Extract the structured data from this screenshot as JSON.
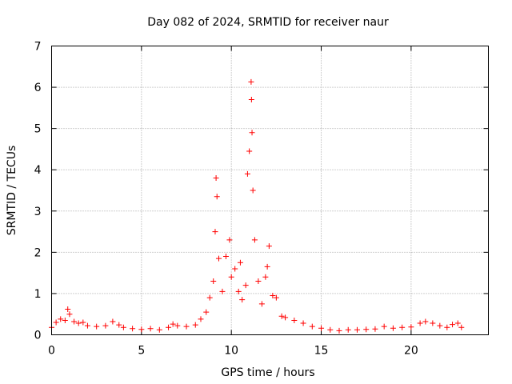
{
  "chart_data": {
    "type": "scatter",
    "title": "Day 082 of 2024, SRMTID for receiver naur",
    "xlabel": "GPS time / hours",
    "ylabel": "SRMTID / TECUs",
    "xlim": [
      0,
      24.3
    ],
    "ylim": [
      0,
      7
    ],
    "x_ticks": [
      0,
      5,
      10,
      15,
      20
    ],
    "y_ticks": [
      0,
      1,
      2,
      3,
      4,
      5,
      6,
      7
    ],
    "grid": true,
    "marker": "+",
    "color": "#ff0000",
    "series": [
      {
        "name": "SRMTID",
        "points": [
          [
            0.0,
            0.18
          ],
          [
            0.25,
            0.3
          ],
          [
            0.5,
            0.38
          ],
          [
            0.75,
            0.35
          ],
          [
            0.9,
            0.62
          ],
          [
            1.0,
            0.5
          ],
          [
            1.25,
            0.32
          ],
          [
            1.5,
            0.28
          ],
          [
            1.75,
            0.3
          ],
          [
            2.0,
            0.22
          ],
          [
            2.5,
            0.2
          ],
          [
            3.0,
            0.22
          ],
          [
            3.4,
            0.32
          ],
          [
            3.75,
            0.24
          ],
          [
            4.0,
            0.18
          ],
          [
            4.5,
            0.15
          ],
          [
            5.0,
            0.13
          ],
          [
            5.5,
            0.15
          ],
          [
            6.0,
            0.12
          ],
          [
            6.5,
            0.18
          ],
          [
            6.75,
            0.26
          ],
          [
            7.0,
            0.22
          ],
          [
            7.5,
            0.2
          ],
          [
            8.0,
            0.24
          ],
          [
            8.3,
            0.38
          ],
          [
            8.6,
            0.55
          ],
          [
            8.8,
            0.9
          ],
          [
            9.0,
            1.3
          ],
          [
            9.1,
            2.5
          ],
          [
            9.15,
            3.8
          ],
          [
            9.2,
            3.35
          ],
          [
            9.3,
            1.85
          ],
          [
            9.5,
            1.05
          ],
          [
            9.7,
            1.9
          ],
          [
            9.9,
            2.3
          ],
          [
            10.0,
            1.4
          ],
          [
            10.2,
            1.6
          ],
          [
            10.4,
            1.05
          ],
          [
            10.5,
            1.75
          ],
          [
            10.6,
            0.85
          ],
          [
            10.8,
            1.2
          ],
          [
            10.9,
            3.9
          ],
          [
            11.0,
            4.45
          ],
          [
            11.1,
            6.13
          ],
          [
            11.12,
            5.7
          ],
          [
            11.15,
            4.9
          ],
          [
            11.2,
            3.5
          ],
          [
            11.3,
            2.3
          ],
          [
            11.5,
            1.3
          ],
          [
            11.7,
            0.75
          ],
          [
            11.9,
            1.4
          ],
          [
            12.0,
            1.65
          ],
          [
            12.1,
            2.15
          ],
          [
            12.3,
            0.95
          ],
          [
            12.5,
            0.9
          ],
          [
            12.8,
            0.45
          ],
          [
            13.0,
            0.42
          ],
          [
            13.5,
            0.35
          ],
          [
            14.0,
            0.28
          ],
          [
            14.5,
            0.2
          ],
          [
            15.0,
            0.16
          ],
          [
            15.5,
            0.12
          ],
          [
            16.0,
            0.1
          ],
          [
            16.5,
            0.12
          ],
          [
            17.0,
            0.12
          ],
          [
            17.5,
            0.13
          ],
          [
            18.0,
            0.14
          ],
          [
            18.5,
            0.2
          ],
          [
            19.0,
            0.16
          ],
          [
            19.5,
            0.18
          ],
          [
            20.0,
            0.19
          ],
          [
            20.5,
            0.28
          ],
          [
            20.8,
            0.32
          ],
          [
            21.2,
            0.28
          ],
          [
            21.6,
            0.22
          ],
          [
            22.0,
            0.18
          ],
          [
            22.3,
            0.25
          ],
          [
            22.6,
            0.28
          ],
          [
            22.8,
            0.18
          ]
        ]
      }
    ]
  }
}
